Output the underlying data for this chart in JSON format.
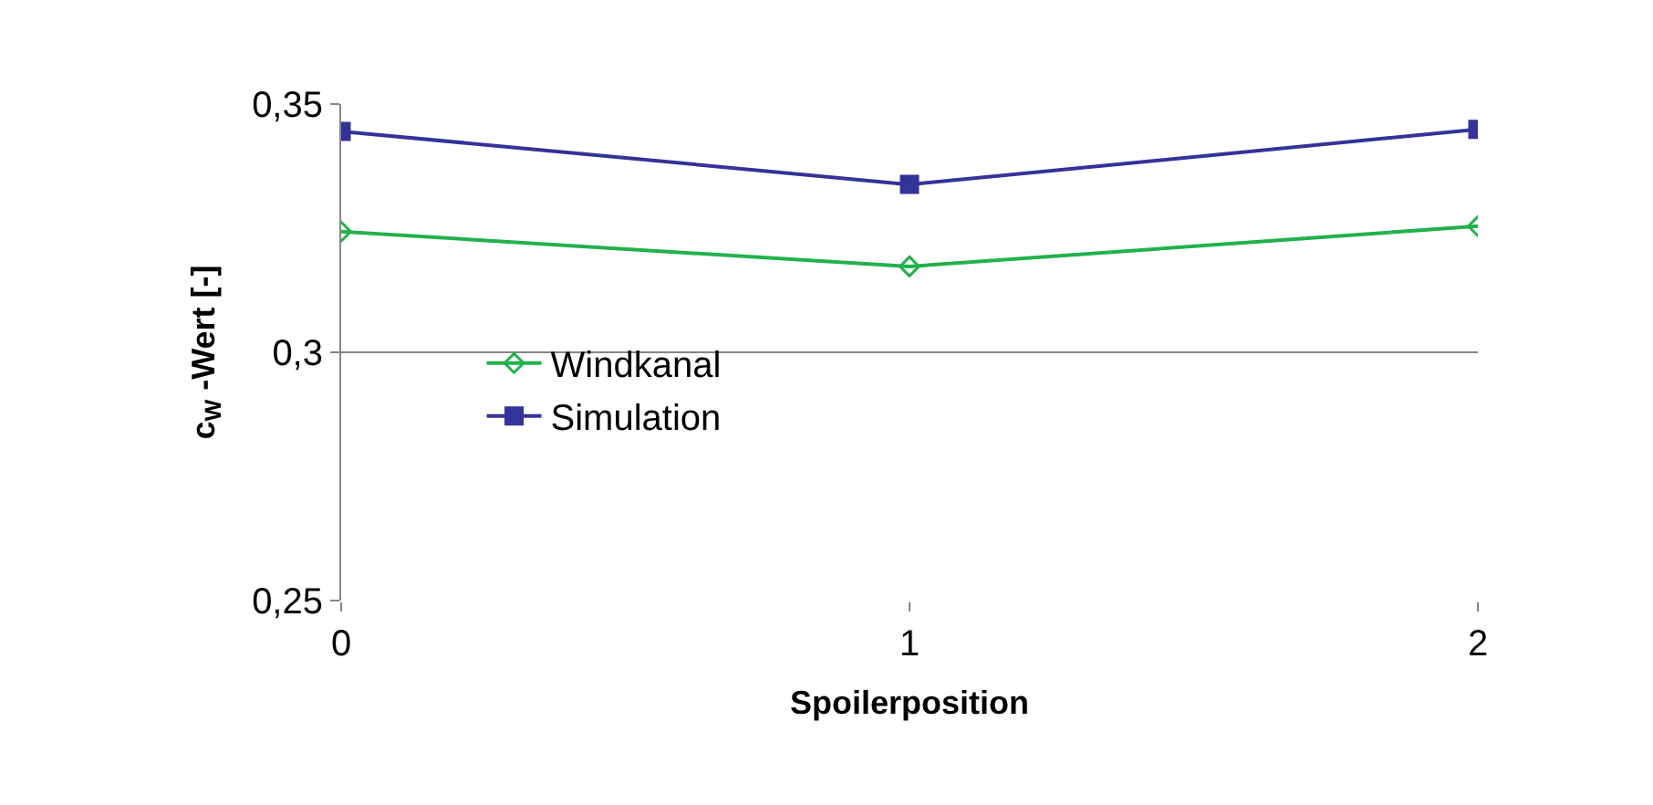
{
  "chart_data": {
    "type": "line",
    "xlabel": "Spoilerposition",
    "ylabel": "c$_{W}$ -Wert [-]",
    "x": [
      0,
      1,
      2
    ],
    "series": [
      {
        "name": "Windkanal",
        "color": "#22b14c",
        "marker": "diamond",
        "values": [
          0.3243,
          0.3173,
          0.3254
        ]
      },
      {
        "name": "Simulation",
        "color": "#333399",
        "marker": "square",
        "values": [
          0.3445,
          0.3338,
          0.3449
        ]
      }
    ],
    "xlim": [
      0,
      2
    ],
    "xticks": [
      0,
      1,
      2
    ],
    "ylim": [
      0.25,
      0.35
    ],
    "yticks": [
      {
        "value": 0.25,
        "label": "0,25"
      },
      {
        "value": 0.3,
        "label": "0,3"
      },
      {
        "value": 0.35,
        "label": "0,35"
      }
    ],
    "grid": "y",
    "legend": "left",
    "line_style": "solid"
  }
}
